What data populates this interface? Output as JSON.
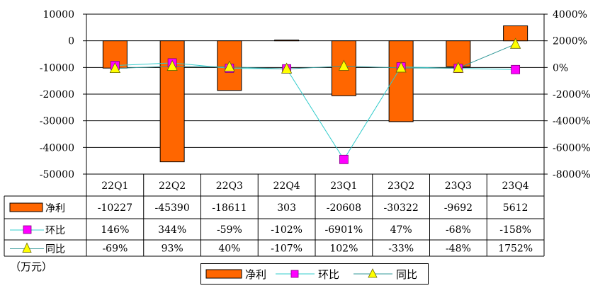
{
  "chart_data": {
    "type": "bar",
    "categories": [
      "22Q1",
      "22Q2",
      "22Q3",
      "22Q4",
      "23Q1",
      "23Q2",
      "23Q3",
      "23Q4"
    ],
    "series": [
      {
        "name": "净利",
        "kind": "bar",
        "axis": "left",
        "color": "#ff6600",
        "values": [
          -10227,
          -45390,
          -18611,
          303,
          -20608,
          -30322,
          -9692,
          5612
        ],
        "labels": [
          "-10227",
          "-45390",
          "-18611",
          "303",
          "-20608",
          "-30322",
          "-9692",
          "5612"
        ]
      },
      {
        "name": "环比",
        "kind": "line",
        "axis": "right",
        "color": "#33cccc",
        "marker": "square",
        "marker_color": "#ff00ff",
        "values": [
          146,
          344,
          -59,
          -102,
          -6901,
          47,
          -68,
          -158
        ],
        "labels": [
          "146%",
          "344%",
          "-59%",
          "-102%",
          "-6901%",
          "47%",
          "-68%",
          "-158%"
        ]
      },
      {
        "name": "同比",
        "kind": "line",
        "axis": "right",
        "color": "#339999",
        "marker": "triangle",
        "marker_color": "#ffff00",
        "values": [
          -69,
          93,
          40,
          -107,
          102,
          -33,
          -48,
          1752
        ],
        "labels": [
          "-69%",
          "93%",
          "40%",
          "-107%",
          "102%",
          "-33%",
          "-48%",
          "1752%"
        ]
      }
    ],
    "y_left": {
      "min": -50000,
      "max": 10000,
      "ticks": [
        "10000",
        "0",
        "-10000",
        "-20000",
        "-30000",
        "-40000",
        "-50000"
      ]
    },
    "y_right": {
      "min": -8000,
      "max": 4000,
      "ticks": [
        "4000%",
        "2000%",
        "0%",
        "-2000%",
        "-4000%",
        "-6000%",
        "-8000%"
      ]
    },
    "grid": true,
    "legend": {
      "position": "bottom"
    },
    "unit_note": "（万元）"
  }
}
